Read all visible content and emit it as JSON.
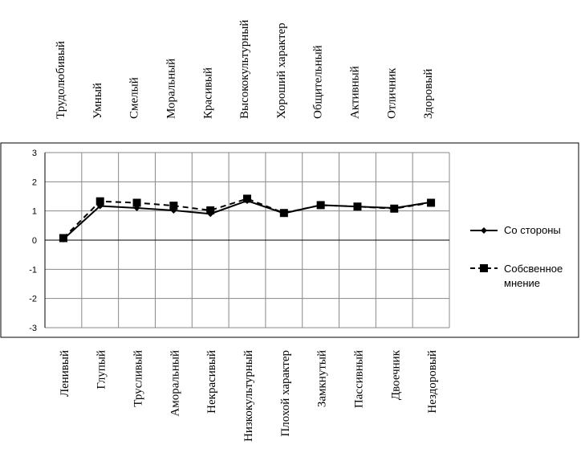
{
  "chart_data": {
    "type": "line",
    "top_labels": [
      "Трудолюбивый",
      "Умный",
      "Смелый",
      "Моральный",
      "Красивый",
      "Высококультурный",
      "Хороший характер",
      "Общительный",
      "Активный",
      "Отличник",
      "Здоровый"
    ],
    "categories": [
      "Ленивый",
      "Глупый",
      "Трусливый",
      "Аморальный",
      "Некрасивый",
      "Низкокультурный",
      "Плохой характер",
      "Замкнутый",
      "Пассивный",
      "Двоечник",
      "Нездоровый"
    ],
    "ylim": [
      -3,
      3
    ],
    "yticks": [
      "3",
      "2",
      "1",
      "0",
      "-1",
      "-2",
      "-3"
    ],
    "grid": true,
    "legend_position": "right",
    "series": [
      {
        "name": "Со стороны",
        "marker": "diamond",
        "line": "solid",
        "color": "#000000",
        "values": [
          0.03,
          1.17,
          1.1,
          1.02,
          0.9,
          1.35,
          0.92,
          1.2,
          1.15,
          1.1,
          1.3
        ]
      },
      {
        "name": "Собсвенное мнение",
        "marker": "square",
        "line": "dashed",
        "color": "#000000",
        "values": [
          0.07,
          1.33,
          1.28,
          1.18,
          1.02,
          1.42,
          0.93,
          1.2,
          1.15,
          1.08,
          1.28
        ]
      }
    ]
  }
}
